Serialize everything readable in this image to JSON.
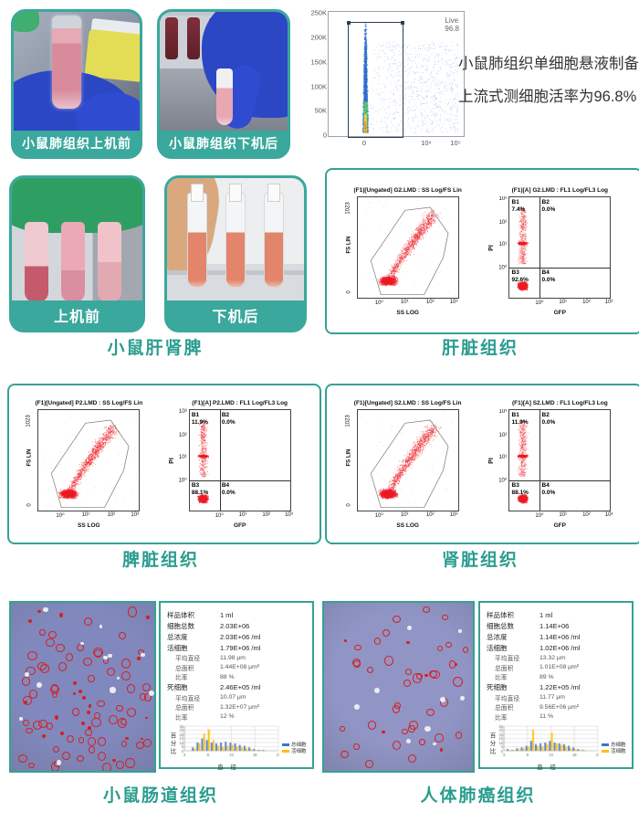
{
  "colors": {
    "teal": "#3aa89c",
    "caption": "#2a9d8f",
    "scatter_red": "#ec1c24",
    "hist_blue": "#4472c4",
    "hist_orange": "#ffc000"
  },
  "intro": {
    "line1": "小鼠肺组织单细胞悬液制备",
    "line2": "上流式测细胞活率为96.8%"
  },
  "top_photos": [
    {
      "label": "小鼠肺组织上机前"
    },
    {
      "label": "小鼠肺组织下机后"
    }
  ],
  "row2_photos": [
    {
      "label": "上机前"
    },
    {
      "label": "下机后"
    }
  ],
  "row2_caption": "小鼠肝肾脾",
  "live_plot": {
    "gate_line1": "Live",
    "gate_line2": "96.8",
    "yticks": [
      "250K",
      "200K",
      "150K",
      "100K",
      "50K",
      "0"
    ],
    "xticks": [
      "0",
      "10⁴",
      "10⁵"
    ]
  },
  "flow_boxes": [
    {
      "caption": "肝脏组织",
      "scatter": {
        "title": "(F1)[Ungated] G2.LMD : SS Log/FS Lin",
        "ylabel": "FS LIN",
        "ytick_top": "1023",
        "ytick_bottom": "0",
        "xlabel": "SS LOG",
        "xticks": [
          "10⁰",
          "10¹",
          "10²",
          "10³"
        ]
      },
      "quad": {
        "title": "(F1)[A] G2.LMD : FL1 Log/FL3 Log",
        "ylabel": "PI",
        "yticks": [
          "10³",
          "10²",
          "10¹",
          "10⁰"
        ],
        "xlabel": "GFP",
        "xticks": [
          "10⁰",
          "10¹",
          "10²",
          "10³"
        ],
        "b1_name": "B1",
        "b1": "7.4%",
        "b2_name": "B2",
        "b2": "0.0%",
        "b3_name": "B3",
        "b3": "92.6%",
        "b4_name": "B4",
        "b4": "0.0%"
      }
    },
    {
      "caption": "脾脏组织",
      "scatter": {
        "title": "(F1)[Ungated] P2.LMD : SS Log/FS Lin",
        "ylabel": "FS LIN",
        "ytick_top": "1023",
        "ytick_bottom": "0",
        "xlabel": "SS LOG",
        "xticks": [
          "10⁰",
          "10¹",
          "10²",
          "10³"
        ]
      },
      "quad": {
        "title": "(F1)[A] P2.LMD : FL1 Log/FL3 Log",
        "ylabel": "PI",
        "yticks": [
          "10³",
          "10²",
          "10¹",
          "10⁰"
        ],
        "xlabel": "GFP",
        "xticks": [
          "10⁰",
          "10¹",
          "10²",
          "10³"
        ],
        "b1_name": "B1",
        "b1": "11.9%",
        "b2_name": "B2",
        "b2": "0.0%",
        "b3_name": "B3",
        "b3": "88.1%",
        "b4_name": "B4",
        "b4": "0.0%"
      }
    },
    {
      "caption": "肾脏组织",
      "scatter": {
        "title": "(F1)[Ungated] S2.LMD : SS Log/FS Lin",
        "ylabel": "FS LIN",
        "ytick_top": "1023",
        "ytick_bottom": "0",
        "xlabel": "SS LOG",
        "xticks": [
          "10⁰",
          "10¹",
          "10²",
          "10³"
        ]
      },
      "quad": {
        "title": "(F1)[A] S2.LMD : FL1 Log/FL3 Log",
        "ylabel": "PI",
        "yticks": [
          "10³",
          "10²",
          "10¹",
          "10⁰"
        ],
        "xlabel": "GFP",
        "xticks": [
          "10⁰",
          "10¹",
          "10²",
          "10³"
        ],
        "b1_name": "B1",
        "b1": "11.9%",
        "b2_name": "B2",
        "b2": "0.0%",
        "b3_name": "B3",
        "b3": "88.1%",
        "b4_name": "B4",
        "b4": "0.0%"
      }
    }
  ],
  "count_boxes": [
    {
      "caption": "小鼠肠道组织",
      "micro": {
        "red_cells": 88,
        "white_cells": 13,
        "seed": 7,
        "bg": "#8188bd"
      },
      "stats": [
        {
          "label": "样品体积",
          "value": "1 ml",
          "indent": false
        },
        {
          "label": "细胞总数",
          "value": "2.03E+06",
          "indent": false
        },
        {
          "label": "总浓度",
          "value": "2.03E+06 /ml",
          "indent": false
        },
        {
          "label": "活细胞",
          "value": "1.79E+06 /ml",
          "indent": false
        },
        {
          "label": "平均直径",
          "value": "11.98 μm",
          "indent": true
        },
        {
          "label": "总面积",
          "value": "1.44E+08 μm²",
          "indent": true
        },
        {
          "label": "比率",
          "value": "88 %",
          "indent": true
        },
        {
          "label": "死细胞",
          "value": "2.46E+05 /ml",
          "indent": false
        },
        {
          "label": "平均直径",
          "value": "10.07 μm",
          "indent": true
        },
        {
          "label": "总面积",
          "value": "1.32E+07 μm²",
          "indent": true
        },
        {
          "label": "比率",
          "value": "12 %",
          "indent": true
        }
      ],
      "hist": {
        "ylabel": "百分比",
        "xlabel": "直 径",
        "legend": [
          "总细胞",
          "活细胞"
        ]
      }
    },
    {
      "caption": "人体肺癌组织",
      "micro": {
        "red_cells": 44,
        "white_cells": 9,
        "seed": 21,
        "bg": "#9095c5"
      },
      "stats": [
        {
          "label": "样品体积",
          "value": "1 ml",
          "indent": false
        },
        {
          "label": "细胞总数",
          "value": "1.14E+06",
          "indent": false
        },
        {
          "label": "总浓度",
          "value": "1.14E+06 /ml",
          "indent": false
        },
        {
          "label": "活细胞",
          "value": "1.02E+06 /ml",
          "indent": false
        },
        {
          "label": "平均直径",
          "value": "13.32 μm",
          "indent": true
        },
        {
          "label": "总面积",
          "value": "1.01E+08 μm²",
          "indent": true
        },
        {
          "label": "比率",
          "value": "89 %",
          "indent": true
        },
        {
          "label": "死细胞",
          "value": "1.22E+05 /ml",
          "indent": false
        },
        {
          "label": "平均直径",
          "value": "11.77 μm",
          "indent": true
        },
        {
          "label": "总面积",
          "value": "9.56E+06 μm²",
          "indent": true
        },
        {
          "label": "比率",
          "value": "11 %",
          "indent": true
        }
      ],
      "hist": {
        "ylabel": "百分比",
        "xlabel": "直 径",
        "legend": [
          "总细胞",
          "活细胞"
        ]
      }
    }
  ],
  "chart_data": [
    {
      "type": "scatter",
      "name": "lung_viability_gate",
      "gate_label": "Live",
      "gate_percent": 96.8,
      "xlabel": "",
      "ylabel": "",
      "xticks": [
        "0",
        "10⁴",
        "10⁵"
      ],
      "yticks": [
        "0",
        "50K",
        "100K",
        "150K",
        "200K",
        "250K"
      ],
      "note": "density scatter, dense column at x≈0, gate rectangle contains 96.8% live cells"
    },
    {
      "type": "scatter",
      "name": "liver_flow",
      "plots": [
        {
          "title": "(F1)[Ungated] G2.LMD : SS Log/FS Lin",
          "xlabel": "SS LOG",
          "ylabel": "FS LIN",
          "yrange": [
            0,
            1023
          ],
          "xticks_log": [
            1,
            10,
            100,
            1000
          ],
          "gate": "polygon"
        },
        {
          "title": "(F1)[A] G2.LMD : FL1 Log/FL3 Log",
          "xlabel": "GFP",
          "ylabel": "PI",
          "quadrants": {
            "B1": 7.4,
            "B2": 0.0,
            "B3": 92.6,
            "B4": 0.0
          }
        }
      ]
    },
    {
      "type": "scatter",
      "name": "spleen_flow",
      "plots": [
        {
          "title": "(F1)[Ungated] P2.LMD : SS Log/FS Lin",
          "xlabel": "SS LOG",
          "ylabel": "FS LIN",
          "yrange": [
            0,
            1023
          ],
          "xticks_log": [
            1,
            10,
            100,
            1000
          ],
          "gate": "polygon"
        },
        {
          "title": "(F1)[A] P2.LMD : FL1 Log/FL3 Log",
          "xlabel": "GFP",
          "ylabel": "PI",
          "quadrants": {
            "B1": 11.9,
            "B2": 0.0,
            "B3": 88.1,
            "B4": 0.0
          }
        }
      ]
    },
    {
      "type": "scatter",
      "name": "kidney_flow",
      "plots": [
        {
          "title": "(F1)[Ungated] S2.LMD : SS Log/FS Lin",
          "xlabel": "SS LOG",
          "ylabel": "FS LIN",
          "yrange": [
            0,
            1023
          ],
          "xticks_log": [
            1,
            10,
            100,
            1000
          ],
          "gate": "polygon"
        },
        {
          "title": "(F1)[A] S2.LMD : FL1 Log/FL3 Log",
          "xlabel": "GFP",
          "ylabel": "PI",
          "quadrants": {
            "B1": 11.9,
            "B2": 0.0,
            "B3": 88.1,
            "B4": 0.0
          }
        }
      ]
    },
    {
      "type": "bar",
      "name": "intestine_cell_size_distribution",
      "title": "",
      "xlabel": "直径",
      "ylabel": "百分比",
      "ylim": [
        0,
        30
      ],
      "categories": [
        5,
        6,
        7,
        8,
        9,
        10,
        11,
        12,
        13,
        14,
        15,
        16,
        17,
        18,
        19,
        20
      ],
      "xticks": [
        "3",
        "8",
        "13",
        "18",
        "23"
      ],
      "xtick_range": [
        3,
        23
      ],
      "series": [
        {
          "name": "总细胞",
          "values": [
            4,
            10,
            15,
            13,
            10,
            9,
            10,
            11,
            10,
            9,
            7,
            6,
            4,
            2,
            1,
            1
          ]
        },
        {
          "name": "活细胞",
          "values": [
            3,
            9,
            21,
            26,
            13,
            6,
            5,
            6,
            7,
            5,
            4,
            3,
            2,
            1,
            1,
            0
          ]
        }
      ]
    },
    {
      "type": "bar",
      "name": "lung_cancer_cell_size_distribution",
      "title": "",
      "xlabel": "直径",
      "ylabel": "百分比",
      "ylim": [
        0,
        30
      ],
      "categories": [
        4,
        5,
        6,
        7,
        8,
        9,
        10,
        11,
        12,
        13,
        14,
        15,
        16,
        17,
        18,
        19,
        20
      ],
      "xticks": [
        "3",
        "8",
        "13",
        "18",
        "23"
      ],
      "xtick_range": [
        3,
        23
      ],
      "series": [
        {
          "name": "总细胞",
          "values": [
            2,
            1,
            3,
            4,
            6,
            12,
            8,
            9,
            10,
            12,
            10,
            9,
            8,
            6,
            4,
            2,
            1
          ]
        },
        {
          "name": "活细胞",
          "values": [
            1,
            1,
            2,
            3,
            5,
            26,
            6,
            5,
            8,
            22,
            9,
            7,
            5,
            3,
            2,
            1,
            1
          ]
        }
      ]
    }
  ]
}
